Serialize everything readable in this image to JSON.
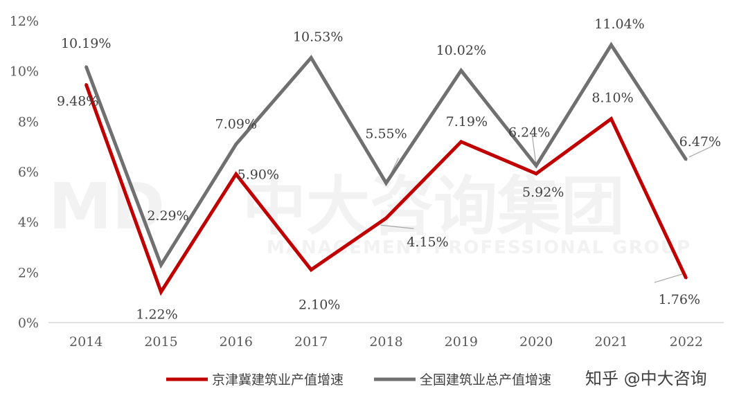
{
  "chart_data": {
    "type": "line",
    "categories": [
      "2014",
      "2015",
      "2016",
      "2017",
      "2018",
      "2019",
      "2020",
      "2021",
      "2022"
    ],
    "ylim": [
      0,
      12
    ],
    "yticks": [
      "0%",
      "2%",
      "4%",
      "6%",
      "8%",
      "10%",
      "12%"
    ],
    "grid": false,
    "legend_position": "bottom",
    "series": [
      {
        "name": "京津冀建筑业产值增速",
        "color": "#c00000",
        "values": [
          9.48,
          1.22,
          5.9,
          2.1,
          4.15,
          7.19,
          5.92,
          8.1,
          1.76
        ],
        "labels": [
          "9.48%",
          "1.22%",
          "5.90%",
          "2.10%",
          "4.15%",
          "7.19%",
          "5.92%",
          "8.10%",
          "1.76%"
        ]
      },
      {
        "name": "全国建筑业总产值增速",
        "color": "#707070",
        "values": [
          10.19,
          2.29,
          7.09,
          10.53,
          5.55,
          10.02,
          6.24,
          11.04,
          6.47
        ],
        "labels": [
          "10.19%",
          "2.29%",
          "7.09%",
          "10.53%",
          "5.55%",
          "10.02%",
          "6.24%",
          "11.04%",
          "6.47%"
        ]
      }
    ]
  },
  "watermark": {
    "logo": "MD",
    "cn": "中大咨询集团",
    "en": "MANAGEMENT PROFESSIONAL GROUP"
  },
  "footer": {
    "source_mark": "知乎 @中大咨询"
  }
}
